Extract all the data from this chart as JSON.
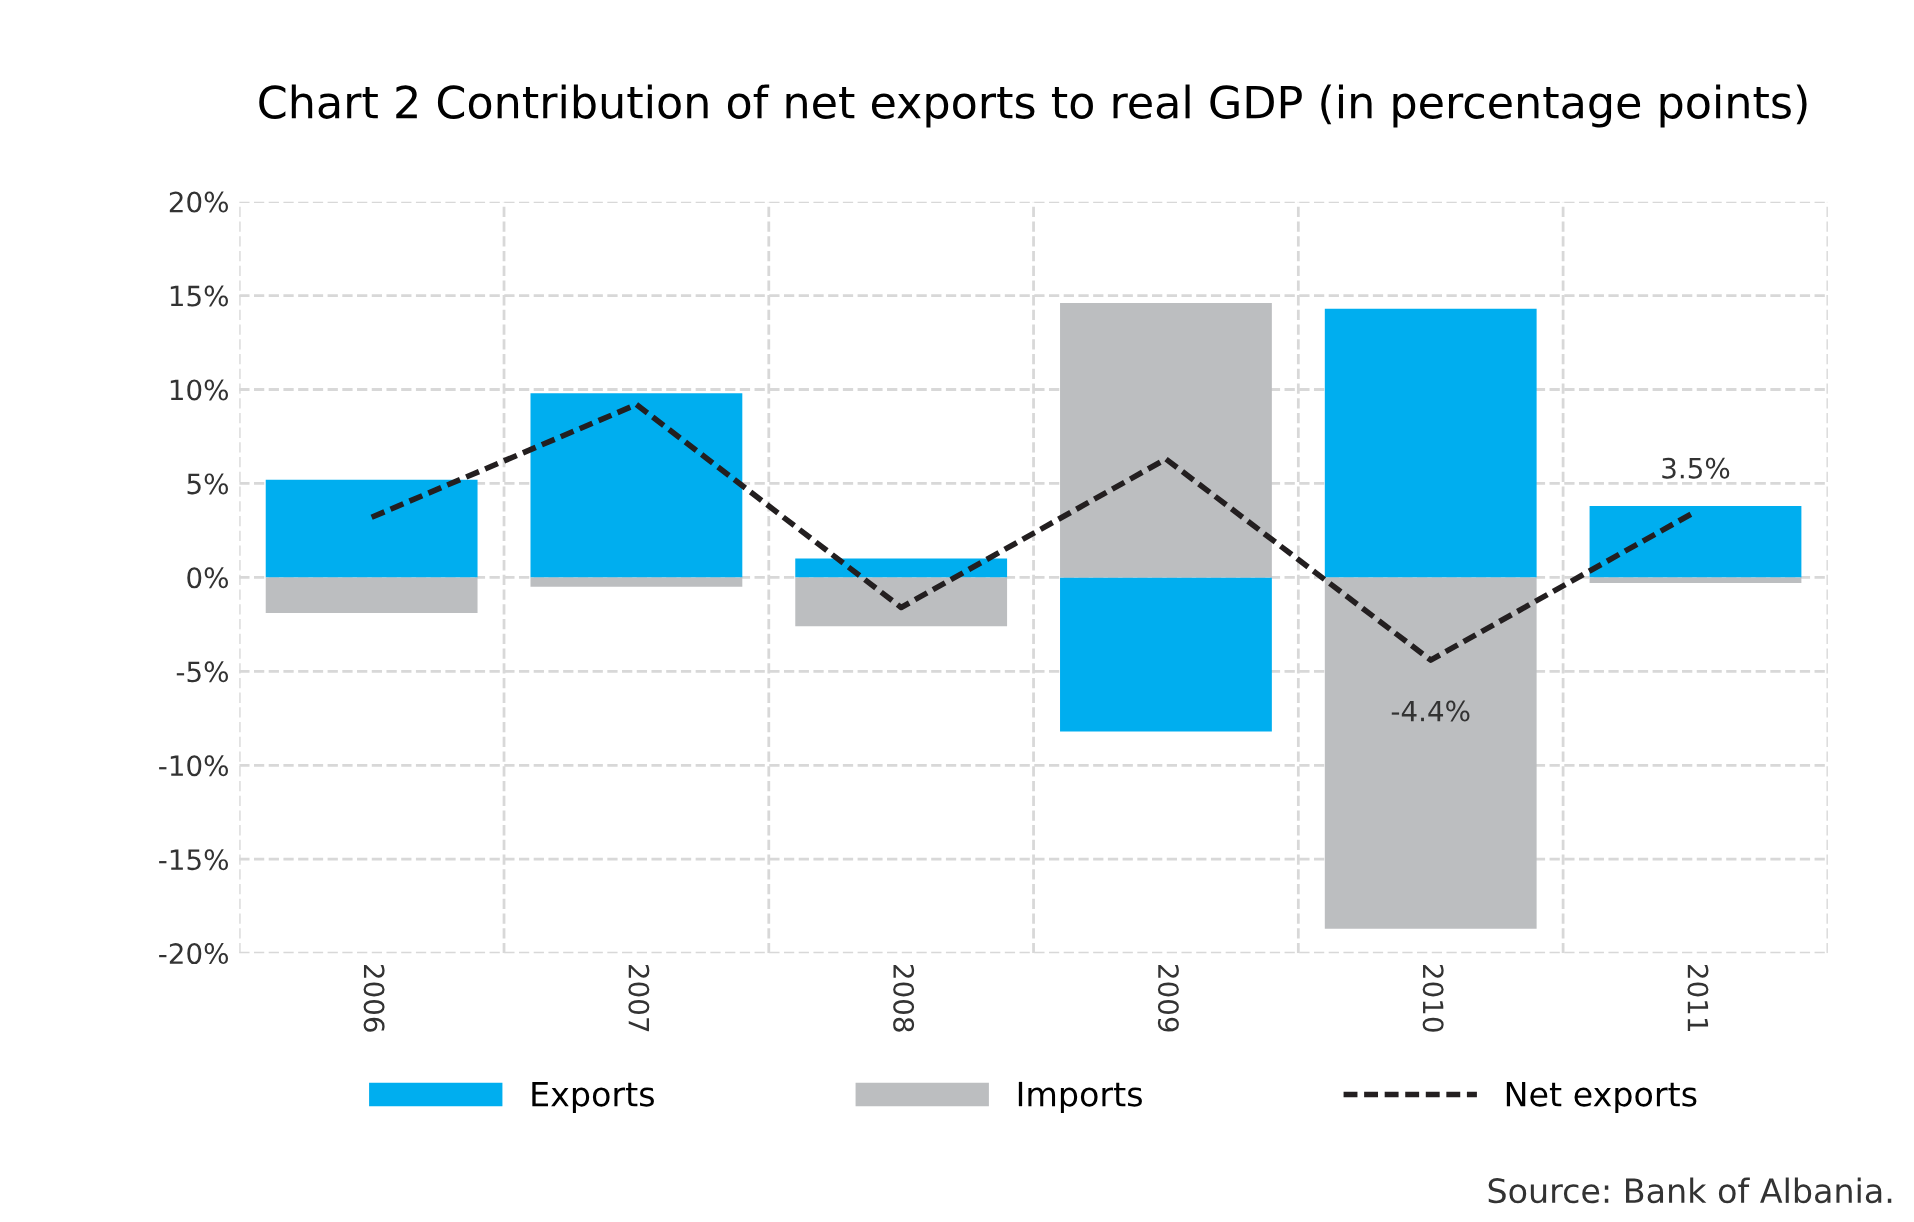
{
  "chart_data": {
    "type": "bar",
    "title": "Chart 2 Contribution of net exports to real GDP (in percentage points)",
    "categories": [
      "2006",
      "2007",
      "2008",
      "2009",
      "2010",
      "2011"
    ],
    "stacked": true,
    "series": [
      {
        "name": "Exports",
        "color": "#00aeef",
        "values": [
          5.2,
          9.8,
          1.0,
          -8.2,
          14.3,
          3.8
        ]
      },
      {
        "name": "Imports",
        "color": "#bcbec0",
        "values": [
          -1.9,
          -0.5,
          -2.6,
          14.6,
          -18.7,
          -0.3
        ]
      },
      {
        "name": "Net exports",
        "type": "line",
        "color": "#231f20",
        "line_style": "dashed",
        "marker": "none",
        "values": [
          3.2,
          9.2,
          -1.6,
          6.3,
          -4.4,
          3.5
        ]
      }
    ],
    "ylim": [
      -20,
      20
    ],
    "yticks": [
      {
        "value": 20,
        "label": "20%"
      },
      {
        "value": 15,
        "label": "15%"
      },
      {
        "value": 10,
        "label": "10%"
      },
      {
        "value": 5,
        "label": "5%"
      },
      {
        "value": 0,
        "label": "0%"
      },
      {
        "value": -5,
        "label": "-5%"
      },
      {
        "value": -10,
        "label": "-10%"
      },
      {
        "value": -15,
        "label": "-15%"
      },
      {
        "value": -20,
        "label": "-20%"
      }
    ],
    "grid": true,
    "legend": "bottom",
    "annotations": [
      {
        "text": "3.5%",
        "x": "2011",
        "y": 3.5
      },
      {
        "text": "-4.4%",
        "x": "2010",
        "y": -4.4
      },
      "Source: Bank of Albania."
    ]
  }
}
